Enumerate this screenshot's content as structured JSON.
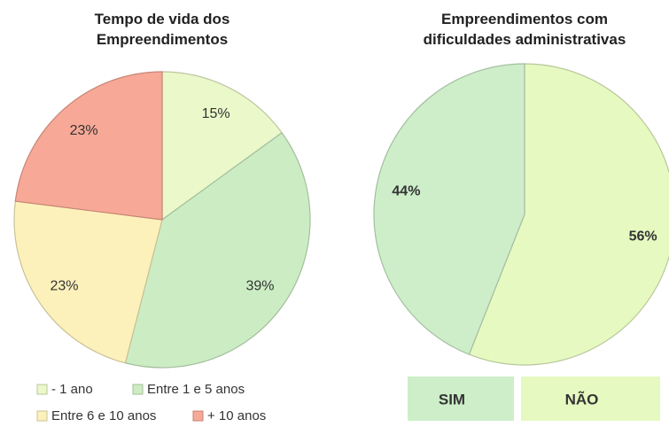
{
  "chart_data": [
    {
      "type": "pie",
      "title": "Tempo de vida dos Empreendimentos",
      "categories": [
        "- 1 ano",
        "Entre 1 e 5 anos",
        "Entre 6 e 10 anos",
        "+ 10 anos"
      ],
      "values": [
        15,
        39,
        23,
        23
      ],
      "value_labels": [
        "15%",
        "39%",
        "23%",
        "23%"
      ],
      "colors": [
        "#ebf8c9",
        "#ccedc4",
        "#fdf1bb",
        "#f7a896"
      ]
    },
    {
      "type": "pie",
      "title": "Empreendimentos com dificuldades administrativas",
      "categories": [
        "SIM",
        "NÃO"
      ],
      "values": [
        44,
        56
      ],
      "value_labels": [
        "44%",
        "56%"
      ],
      "colors": [
        "#cdeec9",
        "#e6f9c1"
      ]
    }
  ]
}
